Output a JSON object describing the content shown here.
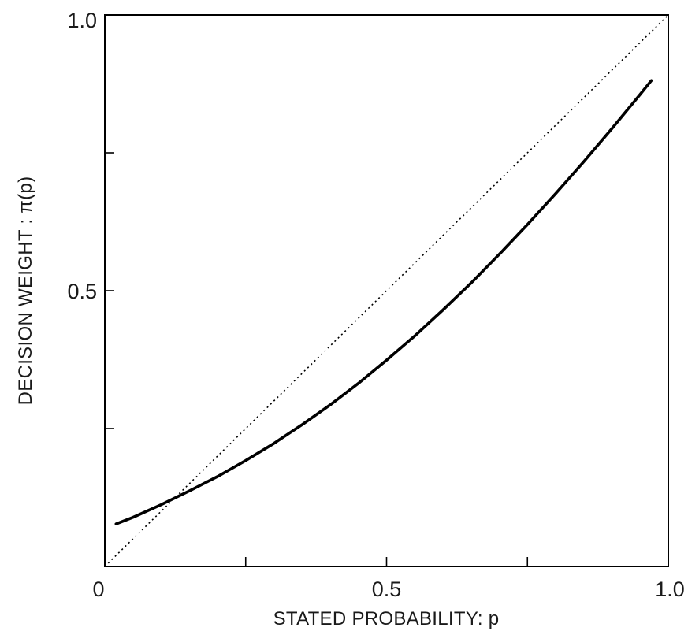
{
  "chart_data": {
    "type": "line",
    "title": "",
    "xlabel": "STATED PROBABILITY: p",
    "ylabel": "DECISION WEIGHT : π(p)",
    "xlim": [
      0,
      1.0
    ],
    "ylim": [
      0,
      1.0
    ],
    "x_ticks": [
      0,
      0.25,
      0.5,
      0.75,
      1.0
    ],
    "y_ticks": [
      0,
      0.25,
      0.5,
      0.75,
      1.0
    ],
    "x_tick_labels": [
      {
        "value": 0,
        "label": "0"
      },
      {
        "value": 0.5,
        "label": "0.5"
      },
      {
        "value": 1.0,
        "label": "1.0"
      }
    ],
    "y_tick_labels": [
      {
        "value": 0.5,
        "label": "0.5"
      },
      {
        "value": 1.0,
        "label": "1.0"
      }
    ],
    "grid": false,
    "legend": "none",
    "series": [
      {
        "style": "solid",
        "color": "#000000",
        "x": [
          0.02,
          0.05,
          0.1,
          0.15,
          0.2,
          0.25,
          0.3,
          0.35,
          0.4,
          0.45,
          0.5,
          0.55,
          0.6,
          0.65,
          0.7,
          0.75,
          0.8,
          0.85,
          0.9,
          0.95,
          0.97
        ],
        "y": [
          0.077,
          0.089,
          0.112,
          0.137,
          0.163,
          0.192,
          0.223,
          0.257,
          0.293,
          0.332,
          0.374,
          0.418,
          0.465,
          0.514,
          0.566,
          0.62,
          0.676,
          0.734,
          0.794,
          0.856,
          0.881
        ]
      },
      {
        "style": "dotted",
        "color": "#000000",
        "x": [
          0,
          1.0
        ],
        "y": [
          0,
          1.0
        ]
      }
    ]
  }
}
